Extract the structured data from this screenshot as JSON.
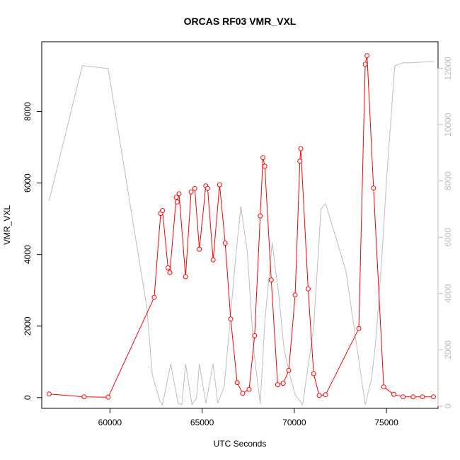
{
  "chart_data": {
    "type": "line",
    "title": "ORCAS RF03 VMR_VXL",
    "xlabel": "UTC Seconds",
    "ylabel": "VMR_VXL",
    "xlim": [
      56300,
      77800
    ],
    "ylim": [
      -300,
      9950
    ],
    "y2lim": [
      -80,
      12950
    ],
    "x_ticks": [
      60000,
      65000,
      70000,
      75000
    ],
    "y_ticks": [
      0,
      2000,
      4000,
      6000,
      8000
    ],
    "y2_ticks": [
      0,
      2000,
      4000,
      6000,
      8000,
      10000,
      12000
    ],
    "grid": false,
    "series": [
      {
        "axis": "left",
        "color": "#ff0000",
        "style": "line+open-circles",
        "x": [
          56700,
          58600,
          59900,
          62400,
          62750,
          62850,
          63150,
          63250,
          63600,
          63650,
          63750,
          64100,
          64400,
          64600,
          64850,
          65200,
          65300,
          65600,
          65950,
          66250,
          66550,
          66900,
          67200,
          67550,
          67850,
          68150,
          68300,
          68400,
          68750,
          69100,
          69400,
          69700,
          70050,
          70300,
          70350,
          70750,
          71050,
          71350,
          71700,
          73500,
          73850,
          73950,
          74300,
          74850,
          75400,
          75900,
          76450,
          76950,
          77550
        ],
        "y": [
          100,
          20,
          10,
          2800,
          5150,
          5230,
          3630,
          3500,
          5600,
          5470,
          5700,
          3380,
          5750,
          5850,
          4150,
          5920,
          5850,
          3850,
          5950,
          4320,
          2200,
          420,
          120,
          230,
          1730,
          5080,
          6710,
          6470,
          3290,
          360,
          400,
          760,
          2870,
          6610,
          6960,
          3040,
          670,
          60,
          80,
          1930,
          9320,
          9560,
          5860,
          300,
          90,
          20,
          20,
          20,
          20
        ]
      },
      {
        "axis": "right",
        "color": "#bebebe",
        "style": "line",
        "x": [
          56700,
          58500,
          59900,
          62000,
          62300,
          62700,
          62850,
          63300,
          63700,
          63900,
          64100,
          64450,
          64700,
          64850,
          65200,
          65600,
          65850,
          66200,
          66850,
          67100,
          67450,
          67800,
          68150,
          68400,
          68800,
          69150,
          69450,
          69800,
          70050,
          70450,
          71050,
          71450,
          71700,
          72800,
          73850,
          74200,
          74450,
          74750,
          75000,
          75450,
          75900,
          76300,
          77600
        ],
        "y": [
          7300,
          12100,
          12000,
          3500,
          1100,
          200,
          50,
          1500,
          100,
          50,
          1500,
          50,
          300,
          1500,
          100,
          1500,
          100,
          700,
          5500,
          7100,
          5500,
          2000,
          80,
          3000,
          5800,
          4000,
          2000,
          1000,
          400,
          50,
          2800,
          7000,
          7200,
          4800,
          50,
          1000,
          2500,
          5300,
          8000,
          12100,
          12200,
          12200,
          12250
        ]
      }
    ]
  }
}
